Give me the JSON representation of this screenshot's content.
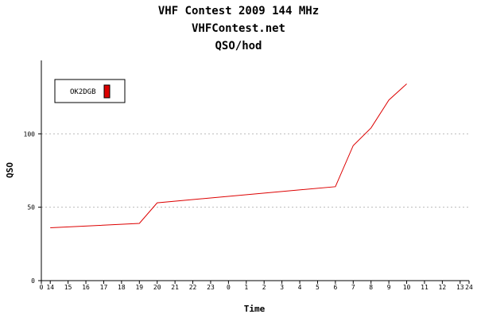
{
  "titles": {
    "line1": "VHF Contest 2009 144 MHz",
    "line2": "VHFContest.net",
    "line3": "QSO/hod"
  },
  "chart_data": {
    "type": "line",
    "title": "VHF Contest 2009 144 MHz",
    "subtitle": "VHFContest.net",
    "chart_label": "QSO/hod",
    "xlabel": "Time",
    "ylabel": "QSO",
    "x_tick_labels": [
      "0",
      "14",
      "15",
      "16",
      "17",
      "18",
      "19",
      "20",
      "21",
      "22",
      "23",
      "0",
      "1",
      "2",
      "3",
      "4",
      "5",
      "6",
      "7",
      "8",
      "9",
      "10",
      "11",
      "12",
      "13",
      "24"
    ],
    "x_tick_values": [
      0,
      0.5,
      1.5,
      2.5,
      3.5,
      4.5,
      5.5,
      6.5,
      7.5,
      8.5,
      9.5,
      10.5,
      11.5,
      12.5,
      13.5,
      14.5,
      15.5,
      16.5,
      17.5,
      18.5,
      19.5,
      20.5,
      21.5,
      22.5,
      23.5,
      24
    ],
    "y_ticks": [
      0,
      50,
      100
    ],
    "xlim": [
      0,
      24
    ],
    "ylim": [
      0,
      150
    ],
    "grid": "horizontal dotted",
    "legend_position": "top-left",
    "colors": {
      "series": "#dd0000",
      "grid": "#bbbbbb",
      "axis": "#000000"
    },
    "series": [
      {
        "name": "OK2DGB",
        "x": [
          0.5,
          5.5,
          6.5,
          16.5,
          17.5,
          18.5,
          19.5,
          20.5
        ],
        "y": [
          36,
          39,
          53,
          64,
          92,
          104,
          123,
          134
        ]
      }
    ]
  }
}
